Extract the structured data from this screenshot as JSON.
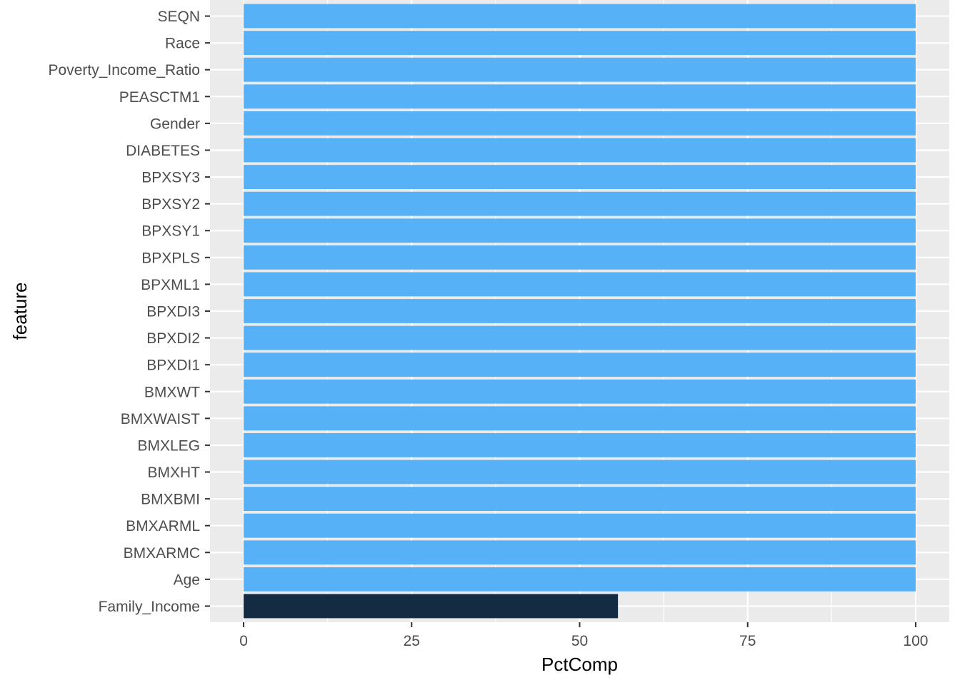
{
  "chart_data": {
    "type": "bar",
    "orientation": "horizontal",
    "xlabel": "PctComp",
    "ylabel": "feature",
    "xlim": [
      -5,
      105
    ],
    "x_ticks": [
      0,
      25,
      50,
      75,
      100
    ],
    "x_tick_labels": [
      "0",
      "25",
      "50",
      "75",
      "100"
    ],
    "grid": true,
    "legend": "none",
    "background_color": "#ebebeb",
    "grid_color": "#ffffff",
    "categories": [
      "SEQN",
      "Race",
      "Poverty_Income_Ratio",
      "PEASCTM1",
      "Gender",
      "DIABETES",
      "BPXSY3",
      "BPXSY2",
      "BPXSY1",
      "BPXPLS",
      "BPXML1",
      "BPXDI3",
      "BPXDI2",
      "BPXDI1",
      "BMXWT",
      "BMXWAIST",
      "BMXLEG",
      "BMXHT",
      "BMXBMI",
      "BMXARML",
      "BMXARMC",
      "Age",
      "Family_Income"
    ],
    "values": [
      100,
      100,
      100,
      100,
      100,
      100,
      100,
      100,
      100,
      100,
      100,
      100,
      100,
      100,
      100,
      100,
      100,
      100,
      100,
      100,
      100,
      100,
      55.7
    ],
    "bar_colors": [
      "#56b1f7",
      "#56b1f7",
      "#56b1f7",
      "#56b1f7",
      "#56b1f7",
      "#56b1f7",
      "#56b1f7",
      "#56b1f7",
      "#56b1f7",
      "#56b1f7",
      "#56b1f7",
      "#56b1f7",
      "#56b1f7",
      "#56b1f7",
      "#56b1f7",
      "#56b1f7",
      "#56b1f7",
      "#56b1f7",
      "#56b1f7",
      "#56b1f7",
      "#56b1f7",
      "#56b1f7",
      "#132b43"
    ]
  }
}
